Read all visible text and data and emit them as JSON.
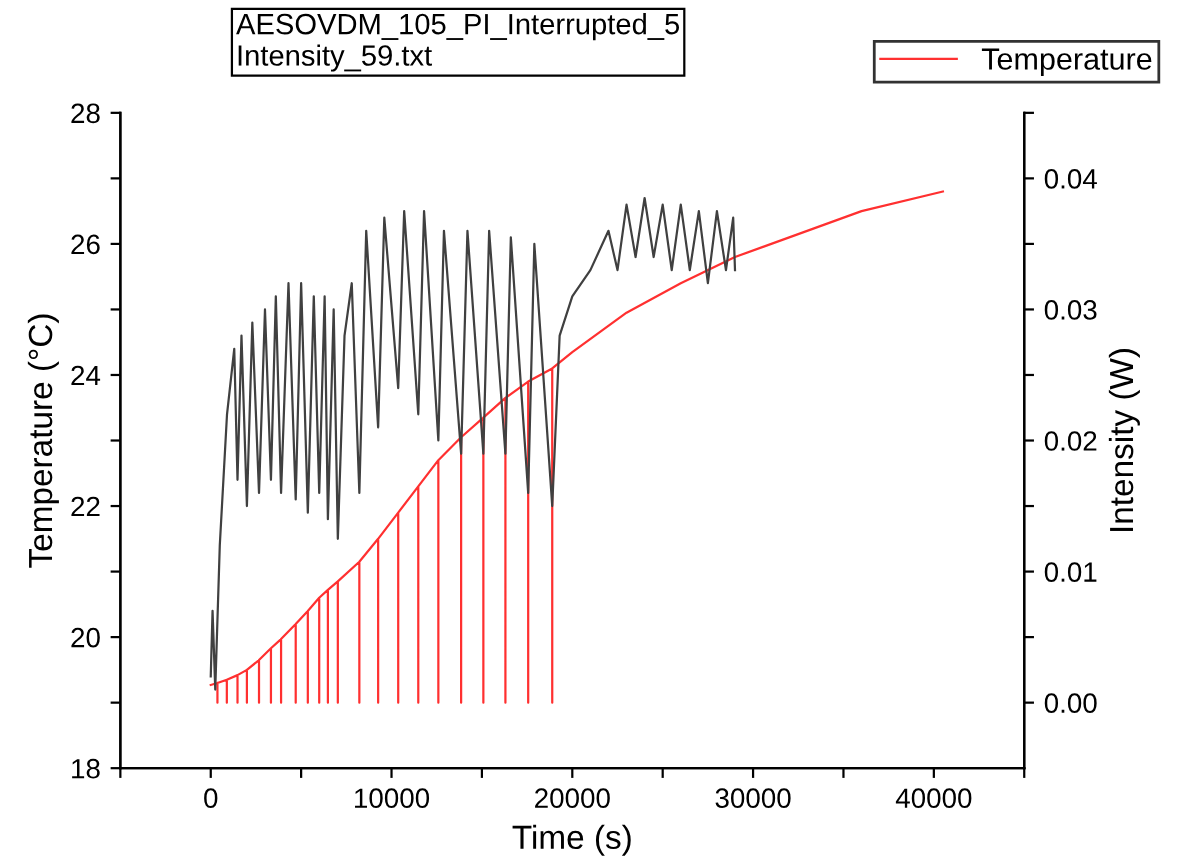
{
  "chart_data": {
    "type": "line",
    "title": "AESOVDM_105_PI_Interrupted_5\nIntensity_59.txt",
    "xlabel": "Time (s)",
    "ylabel": "Temperature (°C)",
    "y2label": "Intensity (W)",
    "xlim": [
      -5000,
      45000
    ],
    "xticks": [
      {
        "value": -5000,
        "label": null
      },
      0,
      {
        "value": 5000,
        "label": null
      },
      10000,
      {
        "value": 15000,
        "label": null
      },
      20000,
      {
        "value": 25000,
        "label": null
      },
      30000,
      {
        "value": 35000,
        "label": null
      },
      40000,
      {
        "value": 45000,
        "label": null
      }
    ],
    "ylim": [
      18,
      28
    ],
    "yticks": [
      18,
      {
        "value": 19,
        "label": null
      },
      20,
      {
        "value": 21,
        "label": null
      },
      22,
      {
        "value": 23,
        "label": null
      },
      24,
      {
        "value": 25,
        "label": null
      },
      26,
      {
        "value": 27,
        "label": null
      },
      28
    ],
    "y2lim": [
      -0.005,
      0.045
    ],
    "y2ticks": [
      {
        "value": 0,
        "label": "0.00"
      },
      {
        "value": 0.005,
        "label": null
      },
      {
        "value": 0.01,
        "label": "0.01"
      },
      {
        "value": 0.015,
        "label": null
      },
      {
        "value": 0.02,
        "label": "0.02"
      },
      {
        "value": 0.025,
        "label": null
      },
      {
        "value": 0.03,
        "label": "0.03"
      },
      {
        "value": 0.035,
        "label": null
      },
      {
        "value": 0.04,
        "label": "0.04"
      },
      {
        "value": 0.045,
        "label": null
      }
    ],
    "grid": false,
    "legend": "top right",
    "marker": "none",
    "line_style": "solid",
    "series": [
      {
        "name": "Temperature",
        "color": "#ff3030",
        "x": [
          0,
          370,
          370,
          370,
          890,
          890,
          890,
          1480,
          1480,
          1480,
          2000,
          2000,
          2000,
          2670,
          2670,
          2670,
          3330,
          3330,
          3330,
          3890,
          3890,
          3890,
          4700,
          4700,
          4700,
          5370,
          5370,
          5370,
          6000,
          6000,
          6000,
          6480,
          6480,
          6480,
          7030,
          7030,
          7030,
          8220,
          8220,
          8220,
          9260,
          9260,
          9260,
          10370,
          10370,
          10370,
          11480,
          11480,
          11480,
          12590,
          12590,
          12590,
          13850,
          13850,
          13850,
          15080,
          15080,
          15080,
          16300,
          16300,
          16300,
          17560,
          17560,
          17560,
          18890,
          18890,
          18890,
          20000,
          23000,
          26000,
          29000,
          32000,
          36000,
          40500
        ],
        "values": [
          19.27,
          19.3,
          19.0,
          19.3,
          19.35,
          19.0,
          19.35,
          19.42,
          19.0,
          19.42,
          19.5,
          19.0,
          19.5,
          19.65,
          19.0,
          19.65,
          19.83,
          19.0,
          19.83,
          19.97,
          19.0,
          19.97,
          20.2,
          19.0,
          20.2,
          20.4,
          19.0,
          20.4,
          20.6,
          19.0,
          20.6,
          20.72,
          19.0,
          20.72,
          20.85,
          19.0,
          20.85,
          21.15,
          19.0,
          21.15,
          21.5,
          19.0,
          21.5,
          21.9,
          19.0,
          21.9,
          22.3,
          19.0,
          22.3,
          22.7,
          19.0,
          22.7,
          23.05,
          19.0,
          23.05,
          23.35,
          19.0,
          23.35,
          23.65,
          19.0,
          23.65,
          23.9,
          19.0,
          23.9,
          24.1,
          19.0,
          24.1,
          24.35,
          24.95,
          25.4,
          25.8,
          26.1,
          26.5,
          26.8
        ]
      },
      {
        "color": "#404040",
        "axis": "y2",
        "x": [
          0,
          100,
          250,
          500,
          900,
          1300,
          1480,
          1700,
          2000,
          2300,
          2670,
          3000,
          3330,
          3600,
          3890,
          4300,
          4700,
          5000,
          5370,
          5700,
          6000,
          6300,
          6480,
          6800,
          7030,
          7400,
          7800,
          8220,
          8600,
          9260,
          9600,
          10370,
          10700,
          11480,
          11800,
          12590,
          12900,
          13850,
          14200,
          15080,
          15400,
          16300,
          16600,
          17560,
          17900,
          18890,
          19300,
          20000,
          21000,
          22000,
          22500,
          23000,
          23500,
          24000,
          24500,
          25000,
          25500,
          26000,
          26500,
          27000,
          27500,
          28000,
          28500,
          28900,
          29000
        ],
        "values": [
          0.002,
          0.007,
          0.001,
          0.012,
          0.022,
          0.027,
          0.017,
          0.028,
          0.015,
          0.029,
          0.016,
          0.03,
          0.017,
          0.031,
          0.016,
          0.032,
          0.0155,
          0.032,
          0.0145,
          0.031,
          0.016,
          0.031,
          0.014,
          0.03,
          0.0125,
          0.028,
          0.032,
          0.016,
          0.036,
          0.021,
          0.037,
          0.024,
          0.0375,
          0.022,
          0.0375,
          0.02,
          0.036,
          0.019,
          0.036,
          0.019,
          0.036,
          0.019,
          0.0355,
          0.016,
          0.035,
          0.015,
          0.028,
          0.031,
          0.033,
          0.036,
          0.033,
          0.038,
          0.034,
          0.0385,
          0.034,
          0.038,
          0.033,
          0.038,
          0.033,
          0.0375,
          0.032,
          0.0375,
          0.033,
          0.037,
          0.033
        ]
      }
    ]
  }
}
